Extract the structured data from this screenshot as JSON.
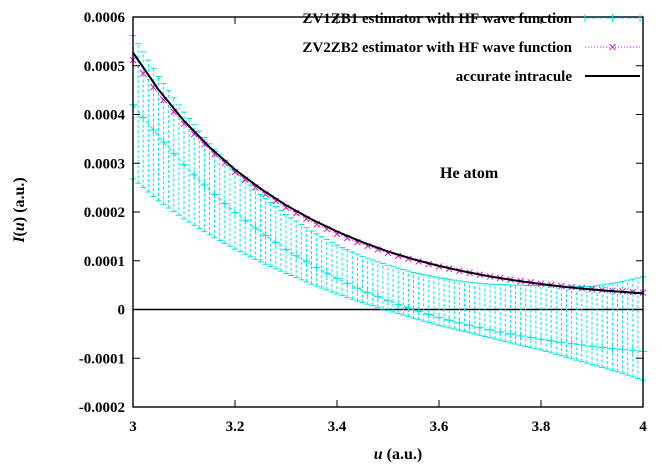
{
  "chart_data": {
    "type": "line",
    "xlabel": "u (a.u.)",
    "xlabel_parts": [
      "u",
      " (a.u.)"
    ],
    "ylabel": "I(u) (a.u.)",
    "ylabel_parts": [
      "I",
      "(",
      "u",
      ") (a.u.)"
    ],
    "xlim": [
      3,
      4
    ],
    "ylim": [
      -0.0002,
      0.0006
    ],
    "x_ticks": [
      3,
      3.2,
      3.4,
      3.6,
      3.8,
      4
    ],
    "x_tick_labels": [
      "3",
      "3.2",
      "3.4",
      "3.6",
      "3.8",
      "4"
    ],
    "y_ticks": [
      -0.0002,
      -0.0001,
      0,
      0.0001,
      0.0002,
      0.0003,
      0.0004,
      0.0005,
      0.0006
    ],
    "y_tick_labels": [
      "-0.0002",
      "-0.0001",
      "0",
      "0.0001",
      "0.0002",
      "0.0003",
      "0.0004",
      "0.0005",
      "0.0006"
    ],
    "annotation": "He atom",
    "legend_position": "top-right",
    "series": [
      {
        "name": "ZV1ZB1 estimator with HF wave function",
        "color": "#00e5e5",
        "marker": "plus",
        "x": [
          3.0,
          3.05,
          3.1,
          3.15,
          3.2,
          3.25,
          3.3,
          3.35,
          3.4,
          3.45,
          3.5,
          3.55,
          3.6,
          3.65,
          3.7,
          3.75,
          3.8,
          3.85,
          3.9,
          3.95,
          4.0
        ],
        "y": [
          0.00042,
          0.000355,
          0.000297,
          0.000245,
          0.000199,
          0.000159,
          0.000123,
          9.15e-05,
          6.35e-05,
          3.9e-05,
          1.8e-05,
          -5e-07,
          -1.65e-05,
          -3e-05,
          -4.2e-05,
          -5.25e-05,
          -6.1e-05,
          -6.9e-05,
          -7.55e-05,
          -8.1e-05,
          -8.6e-05
        ],
        "err_low": [
          0.000268,
          0.000223,
          0.000186,
          0.000153,
          0.000124,
          9.75e-05,
          7.4e-05,
          5.2e-05,
          3.2e-05,
          1.4e-05,
          -2e-06,
          -1.8e-05,
          -3.3e-05,
          -4.5e-05,
          -5.8e-05,
          -7.1e-05,
          -8.3e-05,
          -9.8e-05,
          -0.000113,
          -0.000128,
          -0.000145
        ],
        "err_high": [
          0.000562,
          0.000478,
          0.000405,
          0.00034,
          0.000284,
          0.000236,
          0.000195,
          0.000161,
          0.000132,
          0.000109,
          9.05e-05,
          7.6e-05,
          6.5e-05,
          5.7e-05,
          5.2e-05,
          5e-05,
          4.9e-05,
          4.8e-05,
          4.7e-05,
          5.55e-05,
          6.7e-05
        ]
      },
      {
        "name": "ZV2ZB2 estimator with HF wave function",
        "color": "#d11ad1",
        "marker": "x",
        "x": [
          3.0,
          3.05,
          3.1,
          3.15,
          3.2,
          3.25,
          3.3,
          3.35,
          3.4,
          3.45,
          3.5,
          3.55,
          3.6,
          3.65,
          3.7,
          3.75,
          3.8,
          3.85,
          3.9,
          3.95,
          4.0
        ],
        "y": [
          0.000512,
          0.000442,
          0.000381,
          0.000328,
          0.000282,
          0.000243,
          0.000209,
          0.00018,
          0.000155,
          0.000134,
          0.000116,
          0.000101,
          8.82e-05,
          7.72e-05,
          6.78e-05,
          5.98e-05,
          5.28e-05,
          4.68e-05,
          4.18e-05,
          3.78e-05,
          3.45e-05
        ]
      },
      {
        "name": "accurate intracule",
        "color": "#000000",
        "marker": "none",
        "x": [
          3.0,
          3.05,
          3.1,
          3.15,
          3.2,
          3.25,
          3.3,
          3.35,
          3.4,
          3.45,
          3.5,
          3.55,
          3.6,
          3.65,
          3.7,
          3.75,
          3.8,
          3.85,
          3.9,
          3.95,
          4.0
        ],
        "y": [
          0.000527,
          0.000451,
          0.000387,
          0.000333,
          0.000287,
          0.000248,
          0.000214,
          0.000185,
          0.00016,
          0.000138,
          0.000119,
          0.000103,
          8.95e-05,
          7.78e-05,
          6.78e-05,
          5.94e-05,
          5.22e-05,
          4.6e-05,
          4.1e-05,
          3.68e-05,
          3.3e-05
        ]
      }
    ]
  }
}
